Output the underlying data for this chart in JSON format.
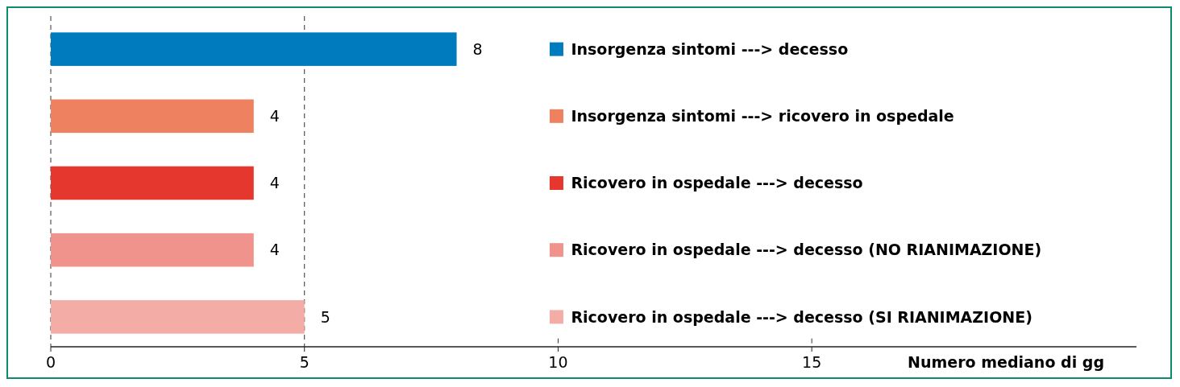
{
  "chart_data": {
    "type": "bar",
    "orientation": "horizontal",
    "xlabel": "Numero mediano di gg",
    "categories": [
      null,
      null,
      null,
      null,
      null
    ],
    "series": [
      {
        "name": "Insorgenza sintomi ---> decesso",
        "color": "#007bbd",
        "values": [
          8,
          null,
          null,
          null,
          null
        ]
      },
      {
        "name": "Insorgenza sintomi ---> ricovero in ospedale",
        "color": "#ee8160",
        "values": [
          null,
          4,
          null,
          null,
          null
        ]
      },
      {
        "name": "Ricovero in ospedale ---> decesso",
        "color": "#e6372e",
        "values": [
          null,
          null,
          4,
          null,
          null
        ]
      },
      {
        "name": "Ricovero in ospedale ---> decesso (NO RIANIMAZIONE)",
        "color": "#f0938c",
        "values": [
          null,
          null,
          null,
          4,
          null
        ]
      },
      {
        "name": "Ricovero in ospedale ---> decesso (SI RIANIMAZIONE)",
        "color": "#f4aca6",
        "values": [
          null,
          null,
          null,
          null,
          5
        ]
      }
    ],
    "xlim": [
      0,
      21.4
    ],
    "xticks": [
      0,
      5,
      10,
      15
    ],
    "grid": "x",
    "legend": "right",
    "data_labels": true
  }
}
